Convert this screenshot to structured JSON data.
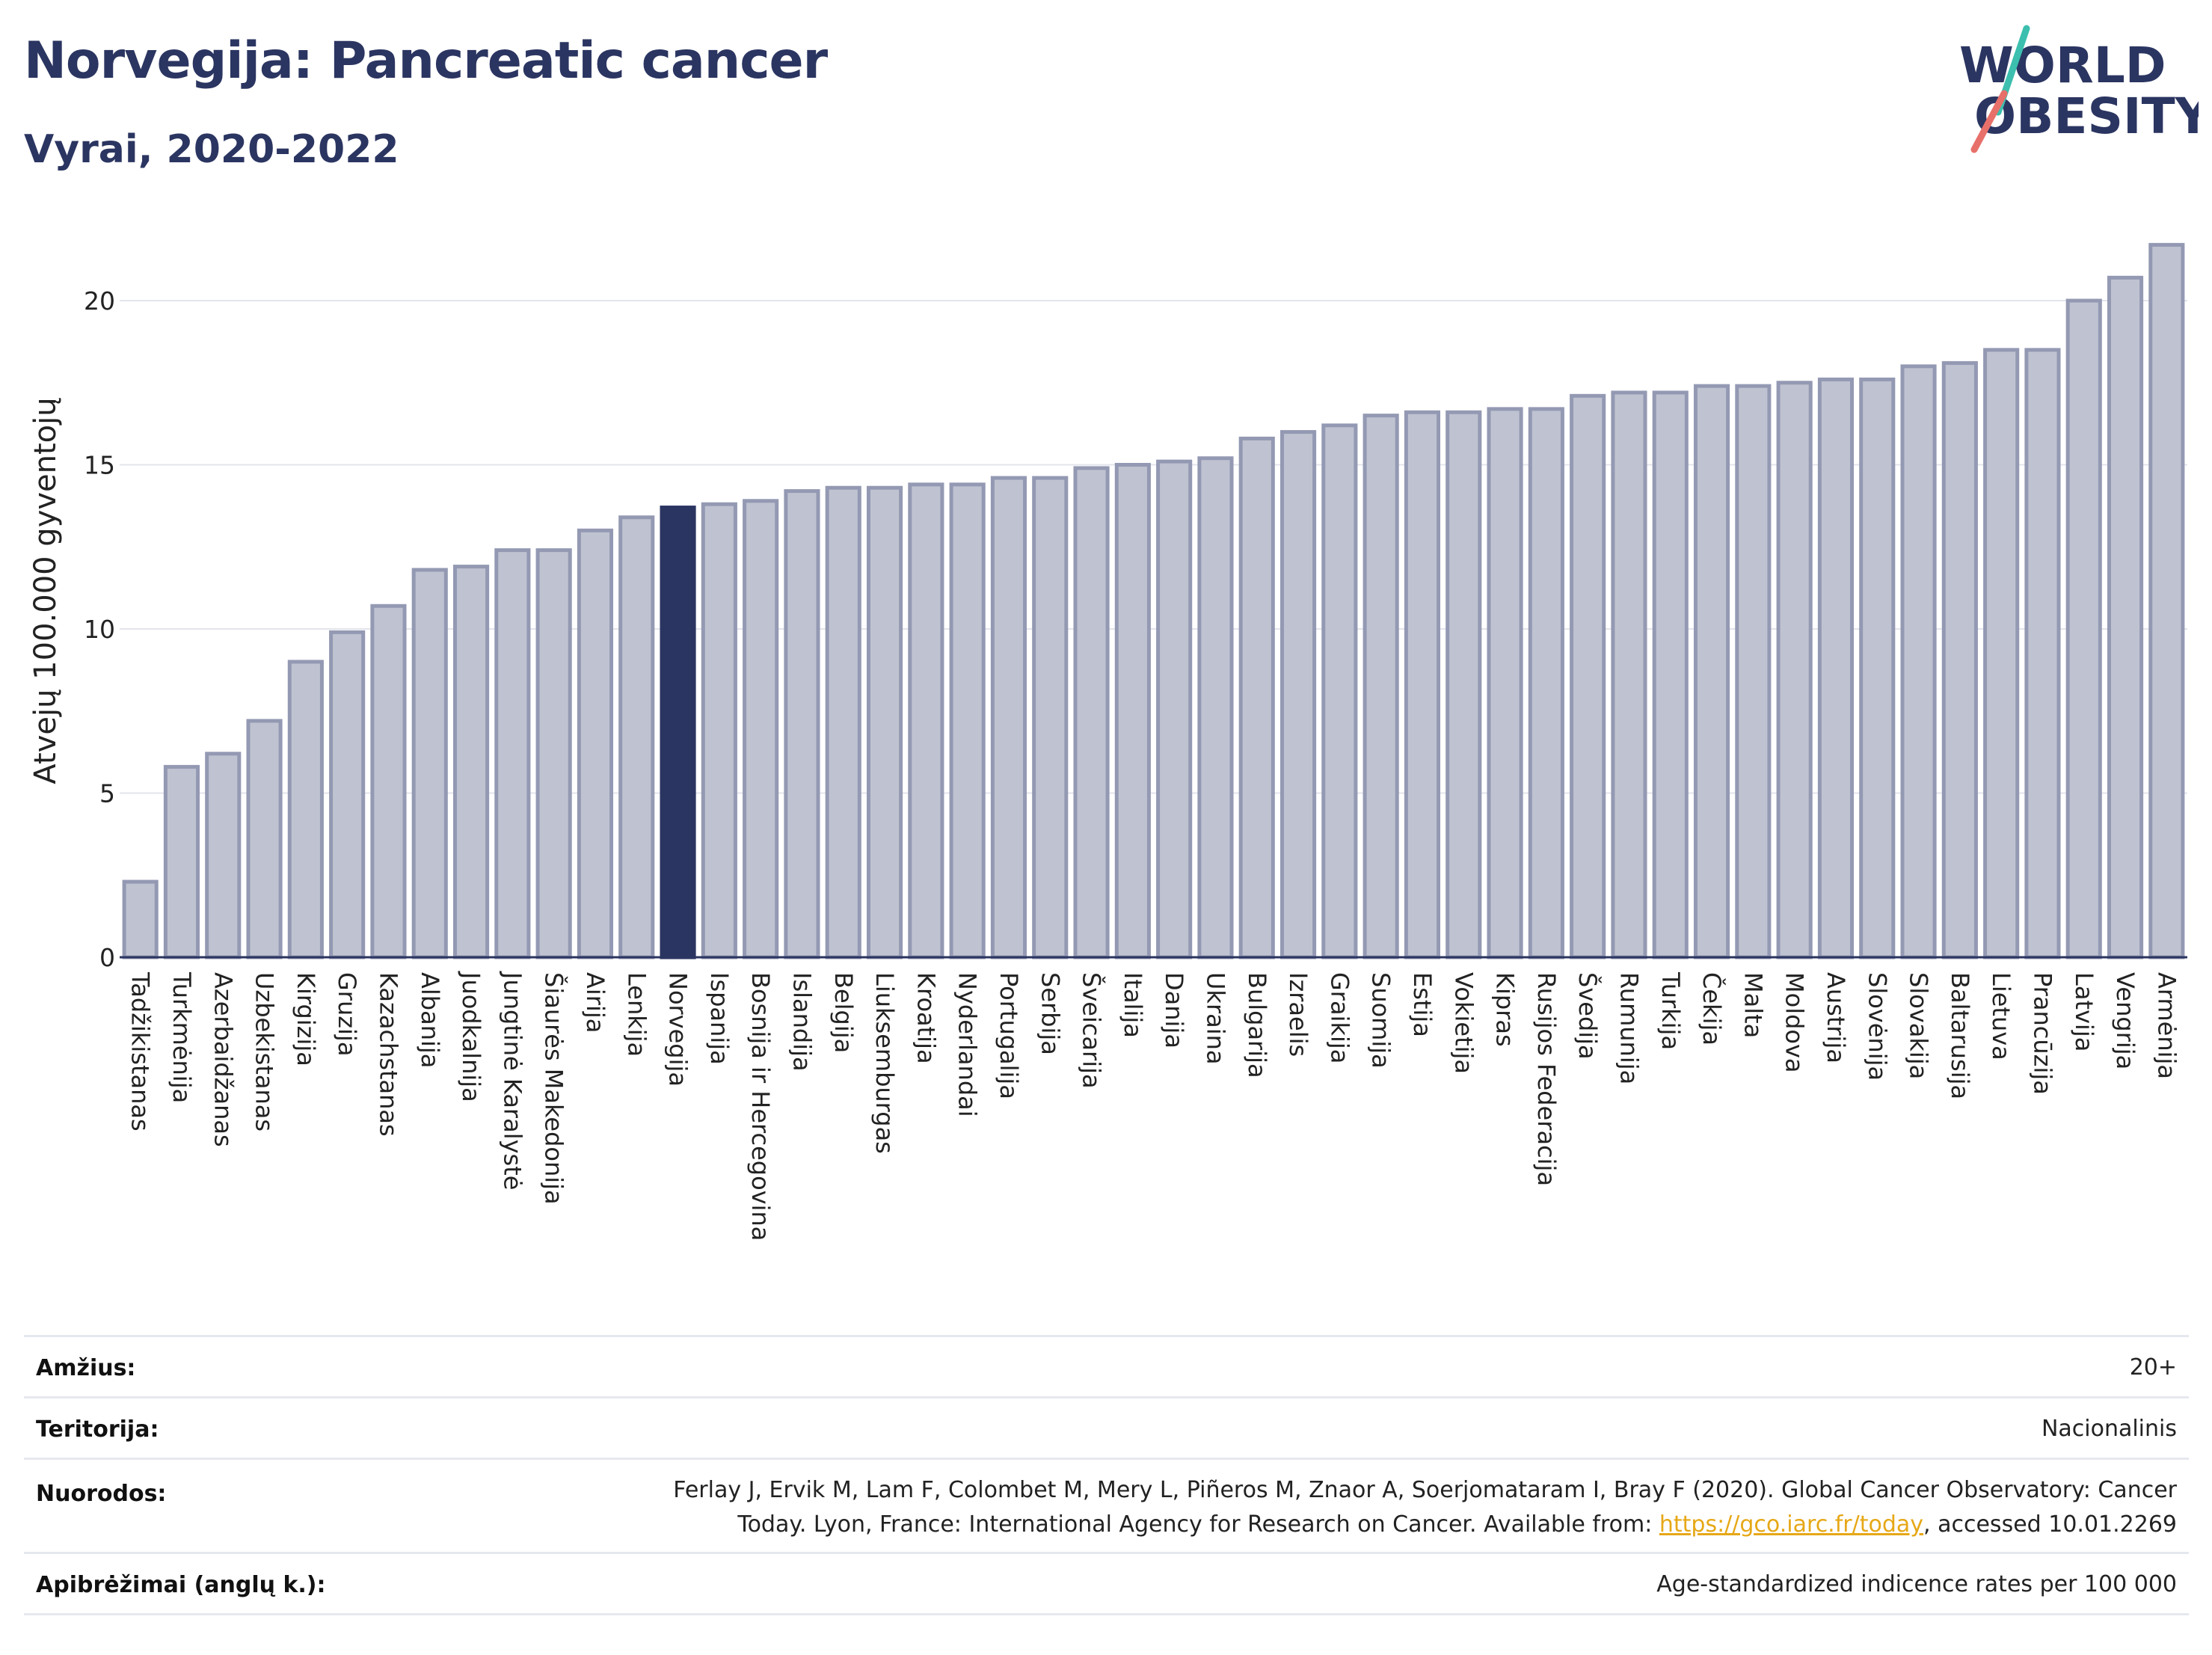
{
  "header": {
    "title": "Norvegija: Pancreatic cancer",
    "subtitle": "Vyrai, 2020-2022"
  },
  "logo": {
    "line1": "WORLD",
    "line2": "OBESITY"
  },
  "colors": {
    "bar": "#bfc3d1",
    "bar_border": "#9499b3",
    "highlight": "#2b3561",
    "grid": "#e3e5ec",
    "logo_teal": "#3cbfae",
    "logo_coral": "#e8706a"
  },
  "chart_data": {
    "type": "bar",
    "ylabel": "Atvejų 100.000 gyventojų",
    "ylim": [
      0,
      22
    ],
    "yticks": [
      0,
      5,
      10,
      15,
      20
    ],
    "grid": true,
    "highlight": "Norvegija",
    "categories": [
      "Tadžikistanas",
      "Turkmėnija",
      "Azerbaidžanas",
      "Uzbekistanas",
      "Kirgizija",
      "Gruzija",
      "Kazachstanas",
      "Albanija",
      "Juodkalnija",
      "Jungtinė Karalystė",
      "Šiaurės Makedonija",
      "Airija",
      "Lenkija",
      "Norvegija",
      "Ispanija",
      "Bosnija ir Hercegovina",
      "Islandija",
      "Belgija",
      "Liuksemburgas",
      "Kroatija",
      "Nyderlandai",
      "Portugalija",
      "Serbija",
      "Šveicarija",
      "Italija",
      "Danija",
      "Ukraina",
      "Bulgarija",
      "Izraelis",
      "Graikija",
      "Suomija",
      "Estija",
      "Vokietija",
      "Kipras",
      "Rusijos Federacija",
      "Švedija",
      "Rumunija",
      "Turkija",
      "Čekija",
      "Malta",
      "Moldova",
      "Austrija",
      "Slovėnija",
      "Slovakija",
      "Baltarusija",
      "Lietuva",
      "Prancūzija",
      "Latvija",
      "Vengrija",
      "Armėnija"
    ],
    "values": [
      2.3,
      5.8,
      6.2,
      7.2,
      9.0,
      9.9,
      10.7,
      11.8,
      11.9,
      12.4,
      12.4,
      13.0,
      13.4,
      13.7,
      13.8,
      13.9,
      14.2,
      14.3,
      14.3,
      14.4,
      14.4,
      14.6,
      14.6,
      14.9,
      15.0,
      15.1,
      15.2,
      15.8,
      16.0,
      16.2,
      16.5,
      16.6,
      16.6,
      16.7,
      16.7,
      17.1,
      17.2,
      17.2,
      17.4,
      17.4,
      17.5,
      17.6,
      17.6,
      18.0,
      18.1,
      18.5,
      18.5,
      20.0,
      20.7,
      21.7
    ]
  },
  "meta": {
    "age_label": "Amžius:",
    "age_value": "20+",
    "territory_label": "Teritorija:",
    "territory_value": "Nacionalinis",
    "refs_label": "Nuorodos:",
    "refs_line1": "Ferlay J, Ervik M, Lam F, Colombet M, Mery L, Piñeros M, Znaor A, Soerjomataram I, Bray F (2020). Global Cancer Observatory: Cancer",
    "refs_line2_pre": "Today. Lyon, France: International Agency for Research on Cancer. Available from: ",
    "refs_link": "https://gco.iarc.fr/today",
    "refs_line2_post": ", accessed 10.01.2269",
    "defs_label": "Apibrėžimai (anglų k.):",
    "defs_value": "Age-standardized indicence rates per 100 000"
  }
}
